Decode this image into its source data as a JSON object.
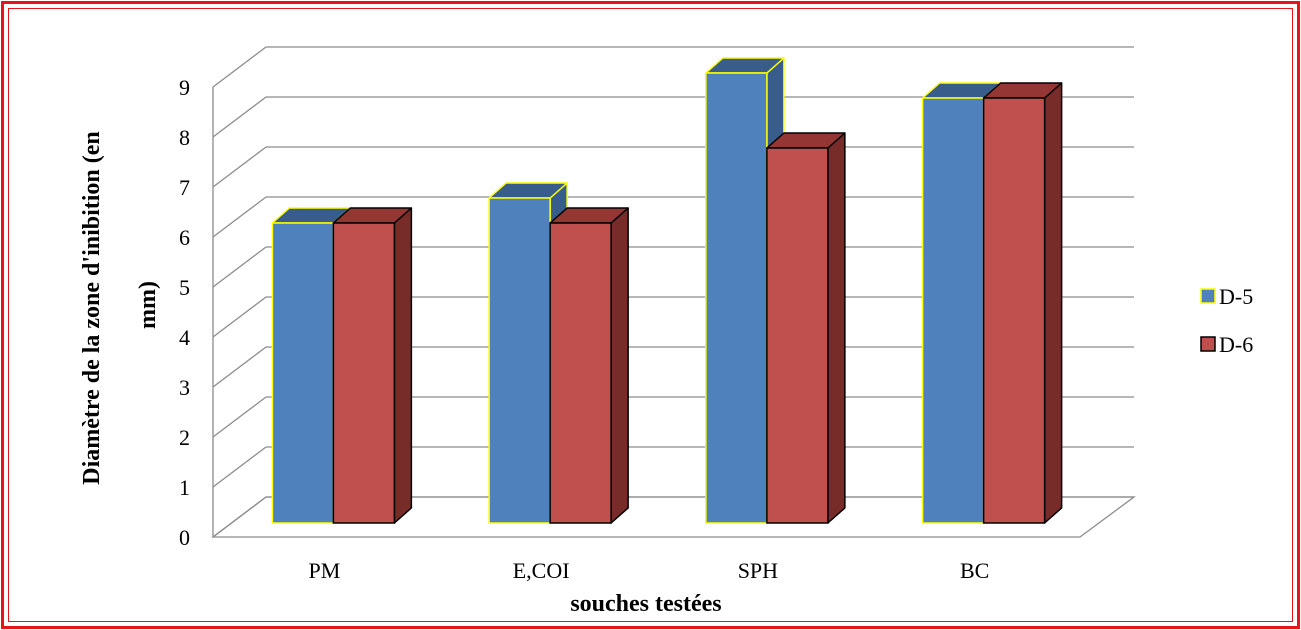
{
  "chart_data": {
    "type": "bar",
    "variant": "3d-clustered-column",
    "categories": [
      "PM",
      "E,COI",
      "SPH",
      "BC"
    ],
    "series": [
      {
        "name": "D-5",
        "values": [
          6,
          6.5,
          9,
          8.5
        ],
        "color": "#4f81bd",
        "side_color": "#385d8a",
        "top_color": "#385d8a",
        "outline_color": "#ffff00"
      },
      {
        "name": "D-6",
        "values": [
          6,
          6,
          7.5,
          8.5
        ],
        "color": "#c0504d",
        "side_color": "#772c2a",
        "top_color": "#943634",
        "outline_color": "#000000"
      }
    ],
    "xlabel": "souches testées",
    "ylabel": "Diamètre de la zone d'inibition (en mm)",
    "ylabel_lines": [
      "Diamètre de la zone d'inibition (en",
      "mm)"
    ],
    "ylim": [
      0,
      9
    ],
    "yticks": [
      0,
      1,
      2,
      3,
      4,
      5,
      6,
      7,
      8,
      9
    ],
    "grid": true,
    "legend_position": "right",
    "frame_color": "#e8141b"
  }
}
